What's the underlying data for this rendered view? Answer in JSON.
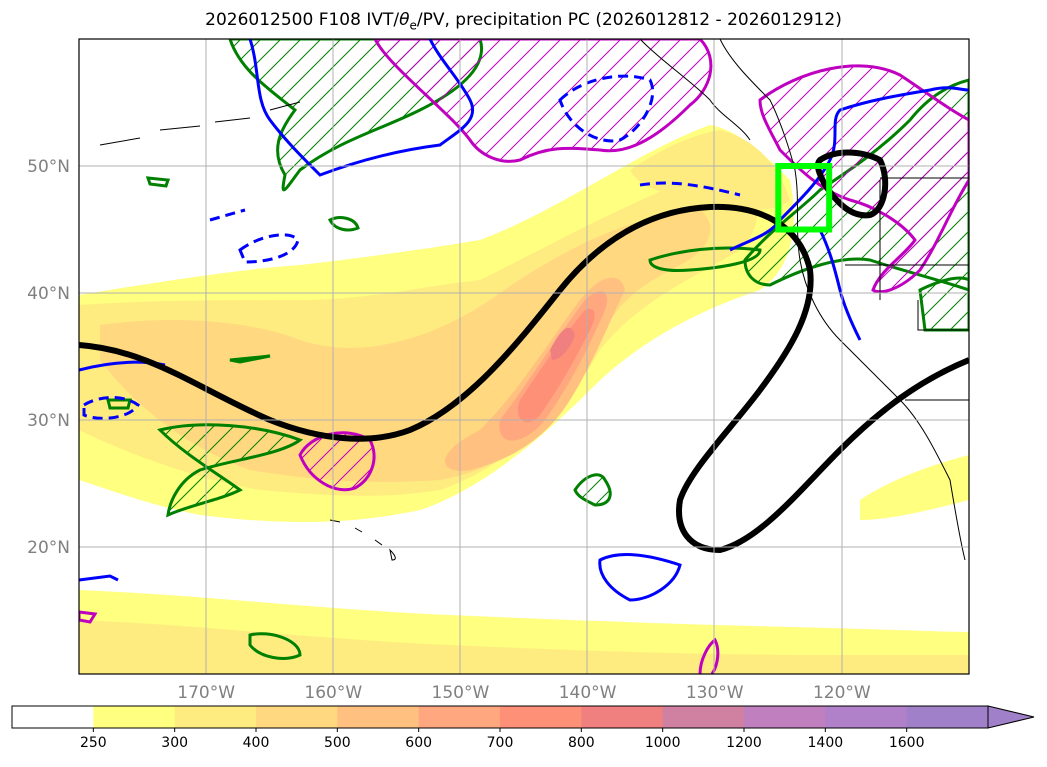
{
  "title": {
    "prefix": "2026012500 F108 IVT/",
    "theta": "θ",
    "sub": "e",
    "suffix": "/PV, precipitation PC (2026012812 - 2026012912)"
  },
  "map": {
    "lon_range": [
      -180,
      -110
    ],
    "lat_range": [
      10,
      60
    ],
    "lat_labels": [
      {
        "lat": 20,
        "text": "20°N"
      },
      {
        "lat": 30,
        "text": "30°N"
      },
      {
        "lat": 40,
        "text": "40°N"
      },
      {
        "lat": 50,
        "text": "50°N"
      }
    ],
    "lon_labels": [
      {
        "lon": -170,
        "text": "170°W"
      },
      {
        "lon": -160,
        "text": "160°W"
      },
      {
        "lon": -150,
        "text": "150°W"
      },
      {
        "lon": -140,
        "text": "140°W"
      },
      {
        "lon": -130,
        "text": "130°W"
      },
      {
        "lon": -120,
        "text": "120°W"
      }
    ],
    "highlight_box": {
      "lon": [
        -125,
        -121
      ],
      "lat": [
        45,
        50
      ],
      "color": "#00ff00"
    }
  },
  "colors": {
    "theta_e": "#0000ff",
    "pv": "#008000",
    "precip": "#c000c0",
    "jet": "#000000"
  },
  "colorbar": {
    "levels": [
      "250",
      "300",
      "400",
      "500",
      "600",
      "700",
      "800",
      "1000",
      "1200",
      "1400",
      "1600"
    ],
    "colors": [
      "#ffffff",
      "#ffff80",
      "#ffec80",
      "#ffd880",
      "#ffc080",
      "#ffa880",
      "#ff9078",
      "#f08080",
      "#d080a0",
      "#c080c0",
      "#b080c8",
      "#a080c8"
    ]
  }
}
